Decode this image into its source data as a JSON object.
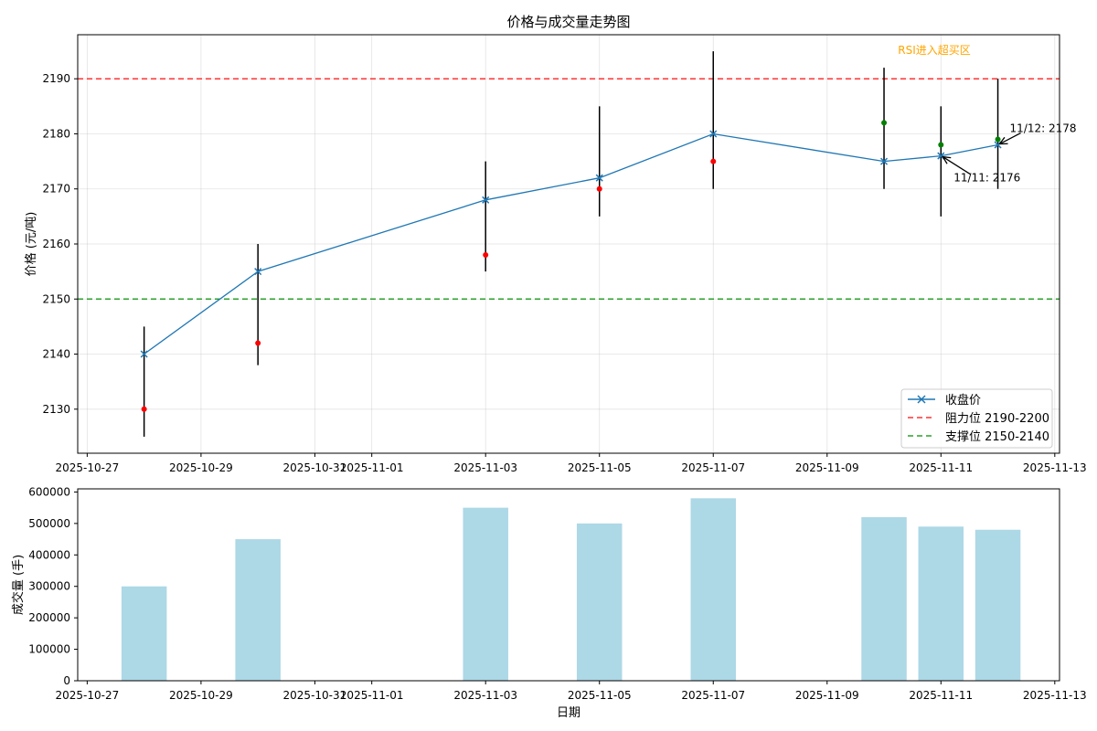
{
  "chart_data": [
    {
      "type": "line",
      "title": "价格与成交量走势图",
      "xlabel": "",
      "ylabel": "价格 (元/吨)",
      "ylim": [
        2122,
        2198
      ],
      "xlim": [
        "2025-10-26T20:00",
        "2025-11-13T02:00"
      ],
      "yticks": [
        2130,
        2140,
        2150,
        2160,
        2170,
        2180,
        2190
      ],
      "xticks": [
        "2025-10-27",
        "2025-10-29",
        "2025-10-31",
        "2025-11-01",
        "2025-11-03",
        "2025-11-05",
        "2025-11-07",
        "2025-11-09",
        "2025-11-11",
        "2025-11-13"
      ],
      "grid": true,
      "legend_position": "lower-right",
      "series": [
        {
          "name": "收盘价",
          "color": "#1f77b4",
          "marker": "x",
          "x": [
            "2025-10-28",
            "2025-10-30",
            "2025-11-03",
            "2025-11-05",
            "2025-11-07",
            "2025-11-10",
            "2025-11-11",
            "2025-11-12"
          ],
          "close": [
            2140,
            2155,
            2168,
            2172,
            2180,
            2175,
            2176,
            2178
          ],
          "high": [
            2145,
            2160,
            2175,
            2185,
            2195,
            2192,
            2185,
            2190
          ],
          "low": [
            2125,
            2138,
            2155,
            2165,
            2170,
            2170,
            2165,
            2170
          ],
          "open": [
            2130,
            2142,
            2158,
            2170,
            2175,
            2182,
            2178,
            2179
          ]
        }
      ],
      "open_colors": [
        "#ff0000",
        "#ff0000",
        "#ff0000",
        "#ff0000",
        "#ff0000",
        "#008000",
        "#008000",
        "#008000"
      ],
      "reference_lines": [
        {
          "name": "阻力位 2190-2200",
          "y": 2190,
          "color": "#ff3333"
        },
        {
          "name": "支撑位 2150-2140",
          "y": 2150,
          "color": "#2ca02c"
        }
      ],
      "annotations": [
        {
          "text": "RSI进入超买区",
          "color": "#ffa500"
        },
        {
          "text": "11/11: 2176",
          "x": "2025-11-11",
          "y": 2176
        },
        {
          "text": "11/12: 2178",
          "x": "2025-11-12",
          "y": 2178
        }
      ]
    },
    {
      "type": "bar",
      "title": "",
      "xlabel": "日期",
      "ylabel": "成交量 (手)",
      "ylim": [
        0,
        610000
      ],
      "yticks": [
        0,
        100000,
        200000,
        300000,
        400000,
        500000,
        600000
      ],
      "xticks": [
        "2025-10-27",
        "2025-10-29",
        "2025-10-31",
        "2025-11-01",
        "2025-11-03",
        "2025-11-05",
        "2025-11-07",
        "2025-11-09",
        "2025-11-11",
        "2025-11-13"
      ],
      "color": "#add8e6",
      "x": [
        "2025-10-28",
        "2025-10-30",
        "2025-11-03",
        "2025-11-05",
        "2025-11-07",
        "2025-11-10",
        "2025-11-11",
        "2025-11-12"
      ],
      "values": [
        300000,
        450000,
        550000,
        500000,
        580000,
        520000,
        490000,
        480000
      ]
    }
  ]
}
